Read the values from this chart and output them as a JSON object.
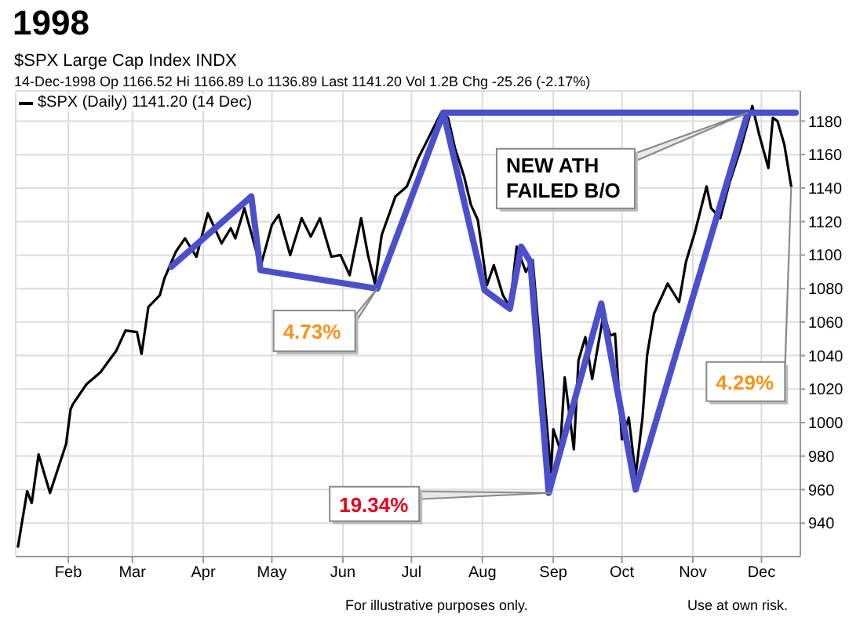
{
  "chart_data": {
    "type": "line",
    "title": "1998",
    "subtitle": "$SPX Large Cap Index INDX",
    "annotations": [
      "14-Dec-1998 Op 1166.52 Hi 1166.89 Lo 1136.89 Last 1141.20 Vol 1.2B Chg -25.26 (-2.17%)",
      {
        "text": "NEW ATH FAILED B/O",
        "x": "1998-11-25",
        "y": 1185
      },
      {
        "text": "4.73%",
        "x": "1998-06-16",
        "y": 1080
      },
      {
        "text": "4.29%",
        "x": "1998-12-14",
        "y": 1141
      },
      {
        "text": "19.34%",
        "x": "1998-08-31",
        "y": 958
      },
      "For illustrative purposes only.",
      "Use at own risk."
    ],
    "series": [
      {
        "name": "$SPX (Daily) 1141.20 (14 Dec)",
        "color": "#000000",
        "x": [
          "1998-01-10",
          "1998-01-14",
          "1998-01-16",
          "1998-01-19",
          "1998-01-24",
          "1998-01-31",
          "1998-02-02",
          "1998-02-03",
          "1998-02-09",
          "1998-02-15",
          "1998-02-22",
          "1998-02-26",
          "1998-03-03",
          "1998-03-05",
          "1998-03-08",
          "1998-03-13",
          "1998-03-15",
          "1998-03-20",
          "1998-03-24",
          "1998-03-29",
          "1998-04-03",
          "1998-04-09",
          "1998-04-13",
          "1998-04-15",
          "1998-04-19",
          "1998-04-26",
          "1998-05-01",
          "1998-05-04",
          "1998-05-09",
          "1998-05-14",
          "1998-05-18",
          "1998-05-22",
          "1998-05-27",
          "1998-05-31",
          "1998-06-04",
          "1998-06-09",
          "1998-06-12",
          "1998-06-15",
          "1998-06-18",
          "1998-06-24",
          "1998-06-29",
          "1998-07-04",
          "1998-07-07",
          "1998-07-14",
          "1998-07-17",
          "1998-07-20",
          "1998-07-24",
          "1998-07-27",
          "1998-07-30",
          "1998-08-03",
          "1998-08-06",
          "1998-08-10",
          "1998-08-13",
          "1998-08-16",
          "1998-08-20",
          "1998-08-23",
          "1998-08-27",
          "1998-08-31",
          "1998-09-01",
          "1998-09-04",
          "1998-09-06",
          "1998-09-10",
          "1998-09-12",
          "1998-09-15",
          "1998-09-18",
          "1998-09-23",
          "1998-09-26",
          "1998-09-28",
          "1998-10-01",
          "1998-10-04",
          "1998-10-07",
          "1998-10-10",
          "1998-10-12",
          "1998-10-15",
          "1998-10-21",
          "1998-10-26",
          "1998-10-29",
          "1998-11-02",
          "1998-11-07",
          "1998-11-09",
          "1998-11-13",
          "1998-11-17",
          "1998-11-22",
          "1998-11-27",
          "1998-11-30",
          "1998-12-04",
          "1998-12-06",
          "1998-12-08",
          "1998-12-11",
          "1998-12-14"
        ],
        "values": [
          926,
          959,
          952,
          981,
          958,
          987,
          1008,
          1011,
          1023,
          1030,
          1043,
          1055,
          1054,
          1041,
          1069,
          1076,
          1086,
          1102,
          1110,
          1099,
          1125,
          1107,
          1116,
          1110,
          1128,
          1093,
          1118,
          1124,
          1100,
          1122,
          1111,
          1122,
          1099,
          1100,
          1088,
          1122,
          1100,
          1083,
          1112,
          1135,
          1141,
          1158,
          1166,
          1185,
          1182,
          1164,
          1147,
          1130,
          1121,
          1082,
          1094,
          1076,
          1069,
          1105,
          1090,
          1097,
          1033,
          970,
          996,
          984,
          1027,
          984,
          1037,
          1051,
          1026,
          1065,
          1052,
          1053,
          990,
          1003,
          968,
          1003,
          1040,
          1065,
          1083,
          1072,
          1096,
          1114,
          1141,
          1128,
          1122,
          1143,
          1164,
          1189,
          1172,
          1152,
          1182,
          1180,
          1166,
          1141
        ]
      },
      {
        "color": "#4a4fcc",
        "x": [
          "1998-03-18",
          "1998-04-22",
          "1998-04-26",
          "1998-06-16",
          "1998-07-15",
          "1998-08-02",
          "1998-08-13",
          "1998-08-18",
          "1998-08-22",
          "1998-08-30",
          "1998-09-22",
          "1998-10-07",
          "1998-11-25"
        ],
        "values": [
          1093,
          1135,
          1091,
          1080,
          1185,
          1079,
          1068,
          1105,
          1096,
          958,
          1071,
          960,
          1185
        ]
      },
      {
        "color": "#4a4fcc",
        "x": [
          "1998-07-15",
          "1998-12-16"
        ],
        "values": [
          1185,
          1185
        ]
      }
    ],
    "xlim": [
      "1998-01-09",
      "1998-12-18"
    ],
    "xticks": [
      {
        "value": "1998-02-01",
        "label": "Feb"
      },
      {
        "value": "1998-03-01",
        "label": "Mar"
      },
      {
        "value": "1998-04-01",
        "label": "Apr"
      },
      {
        "value": "1998-05-01",
        "label": "May"
      },
      {
        "value": "1998-06-01",
        "label": "Jun"
      },
      {
        "value": "1998-07-01",
        "label": "Jul"
      },
      {
        "value": "1998-08-01",
        "label": "Aug"
      },
      {
        "value": "1998-09-01",
        "label": "Sep"
      },
      {
        "value": "1998-10-01",
        "label": "Oct"
      },
      {
        "value": "1998-11-01",
        "label": "Nov"
      },
      {
        "value": "1998-12-01",
        "label": "Dec"
      }
    ],
    "ylim": [
      920,
      1198
    ],
    "yticks": [
      940,
      960,
      980,
      1000,
      1020,
      1040,
      1060,
      1080,
      1100,
      1120,
      1140,
      1160,
      1180
    ],
    "grid": true,
    "legend": "top left",
    "marker": "none",
    "line_style": "solid"
  }
}
